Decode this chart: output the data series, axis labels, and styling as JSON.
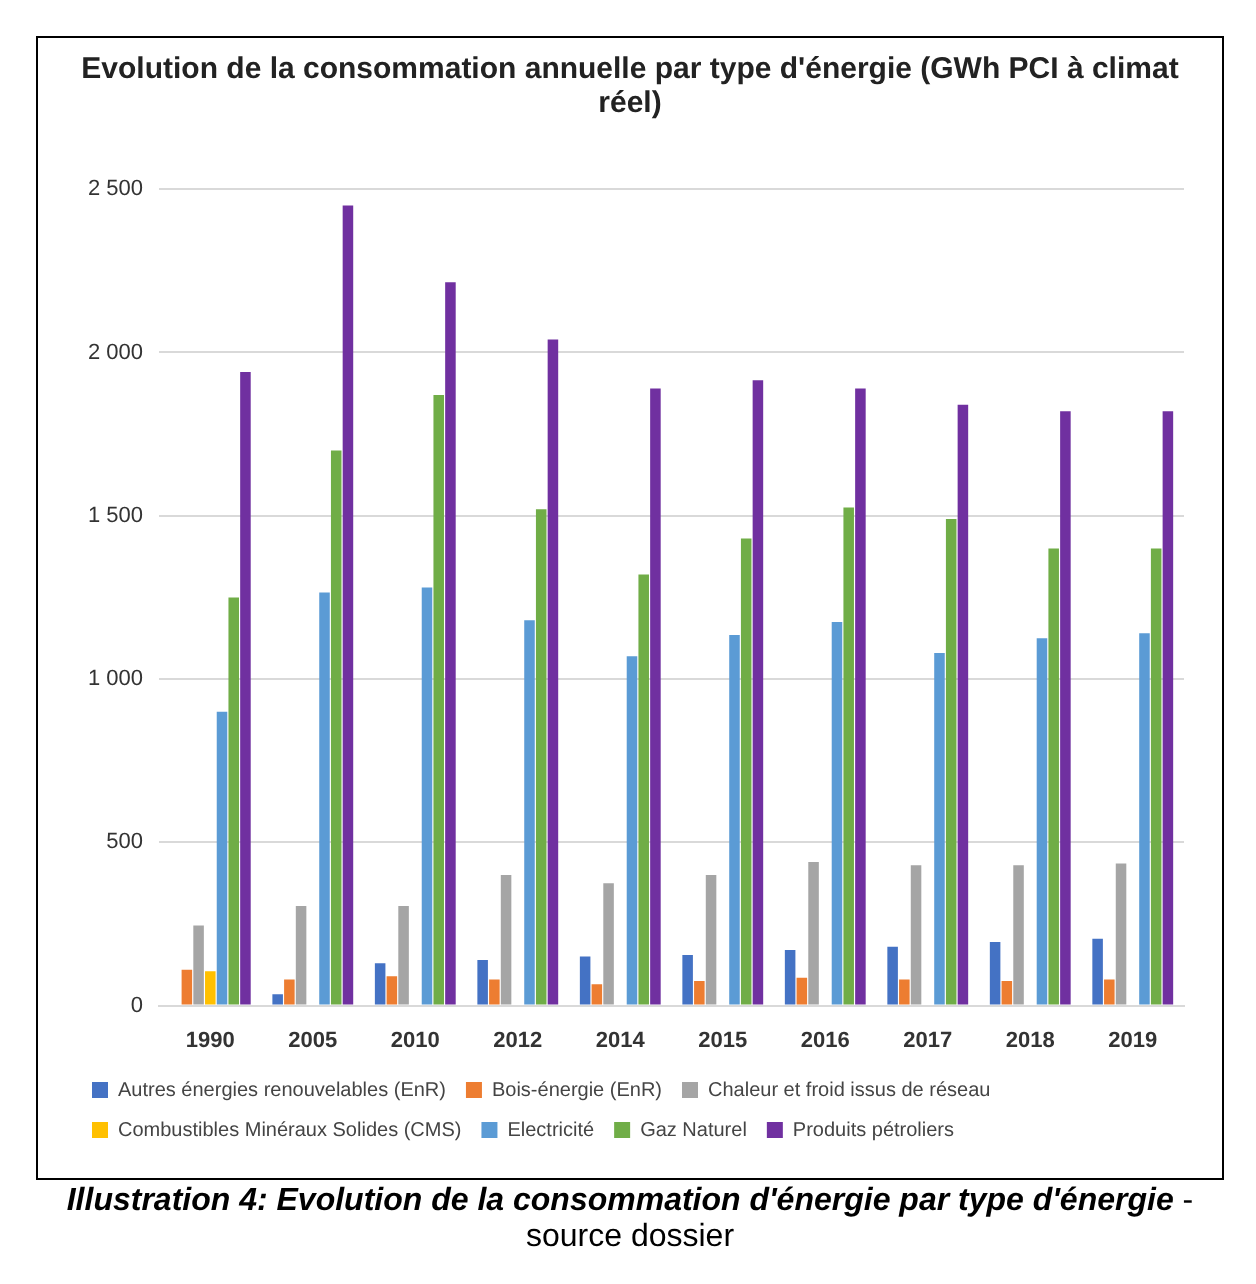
{
  "chart_data": {
    "type": "bar",
    "title": "Evolution de la consommation annuelle par type d'énergie (GWh PCI à climat réel)",
    "categories": [
      "1990",
      "2005",
      "2010",
      "2012",
      "2014",
      "2015",
      "2016",
      "2017",
      "2018",
      "2019"
    ],
    "series": [
      {
        "name": "Autres énergies renouvelables (EnR)",
        "color": "#4472c4",
        "values": [
          null,
          35,
          130,
          140,
          150,
          155,
          170,
          180,
          195,
          205
        ]
      },
      {
        "name": "Bois-énergie (EnR)",
        "color": "#ed7d31",
        "values": [
          110,
          80,
          90,
          80,
          65,
          75,
          85,
          80,
          75,
          80
        ]
      },
      {
        "name": "Chaleur et froid issus de réseau",
        "color": "#a5a5a5",
        "values": [
          245,
          305,
          305,
          400,
          375,
          400,
          440,
          430,
          430,
          435
        ]
      },
      {
        "name": "Combustibles Minéraux Solides (CMS)",
        "color": "#ffc000",
        "values": [
          105,
          null,
          null,
          null,
          null,
          null,
          null,
          null,
          null,
          null
        ]
      },
      {
        "name": "Electricité",
        "color": "#5b9bd5",
        "values": [
          900,
          1265,
          1280,
          1180,
          1070,
          1135,
          1175,
          1080,
          1125,
          1140
        ]
      },
      {
        "name": "Gaz Naturel",
        "color": "#70ad47",
        "values": [
          1250,
          1700,
          1870,
          1520,
          1320,
          1430,
          1525,
          1490,
          1400,
          1400
        ]
      },
      {
        "name": "Produits pétroliers",
        "color": "#7030a0",
        "values": [
          1940,
          2450,
          2215,
          2040,
          1890,
          1915,
          1890,
          1840,
          1820,
          1820
        ]
      }
    ],
    "ylim": [
      0,
      2500
    ],
    "yticks": [
      0,
      500,
      {
        "value": 1000,
        "label": "1 000"
      },
      {
        "value": 1500,
        "label": "1 500"
      },
      {
        "value": 2000,
        "label": "2 000"
      },
      {
        "value": 2500,
        "label": "2 500"
      }
    ],
    "grid": "y",
    "legend": "bottom",
    "annotations": [
      "Illustration 4: Evolution de la consommation d'énergie par type d'énergie",
      "- source dossier"
    ]
  }
}
